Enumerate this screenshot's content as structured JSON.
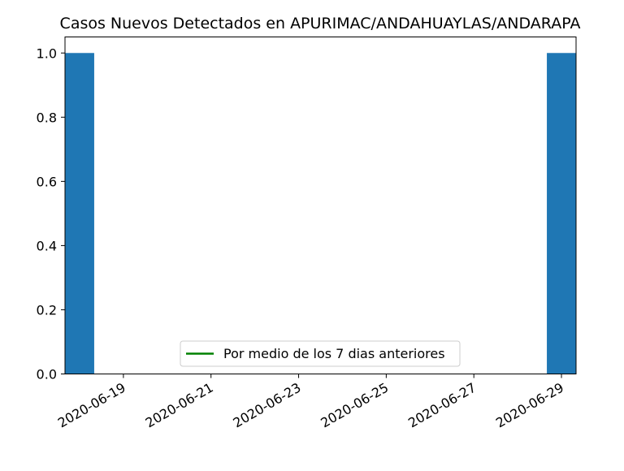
{
  "chart_data": {
    "type": "bar",
    "title": "Casos Nuevos Detectados en APURIMAC/ANDAHUAYLAS/ANDARAPA",
    "xlabel": "",
    "ylabel": "",
    "x_dates": [
      "2020-06-18",
      "2020-06-29"
    ],
    "values": [
      1.0,
      1.0
    ],
    "bar_color": "#1f77b4",
    "xlim": [
      "2020-06-18",
      "2020-06-29"
    ],
    "ylim": [
      0.0,
      1.05
    ],
    "xticks": [
      "2020-06-19",
      "2020-06-21",
      "2020-06-23",
      "2020-06-25",
      "2020-06-27",
      "2020-06-29"
    ],
    "yticks": [
      "0.0",
      "0.2",
      "0.4",
      "0.6",
      "0.8",
      "1.0"
    ],
    "legend": {
      "placement": "lower-center",
      "entries": [
        {
          "label": "Por medio de los 7 dias anteriores",
          "color": "#008000",
          "style": "line"
        }
      ]
    },
    "grid": false
  }
}
